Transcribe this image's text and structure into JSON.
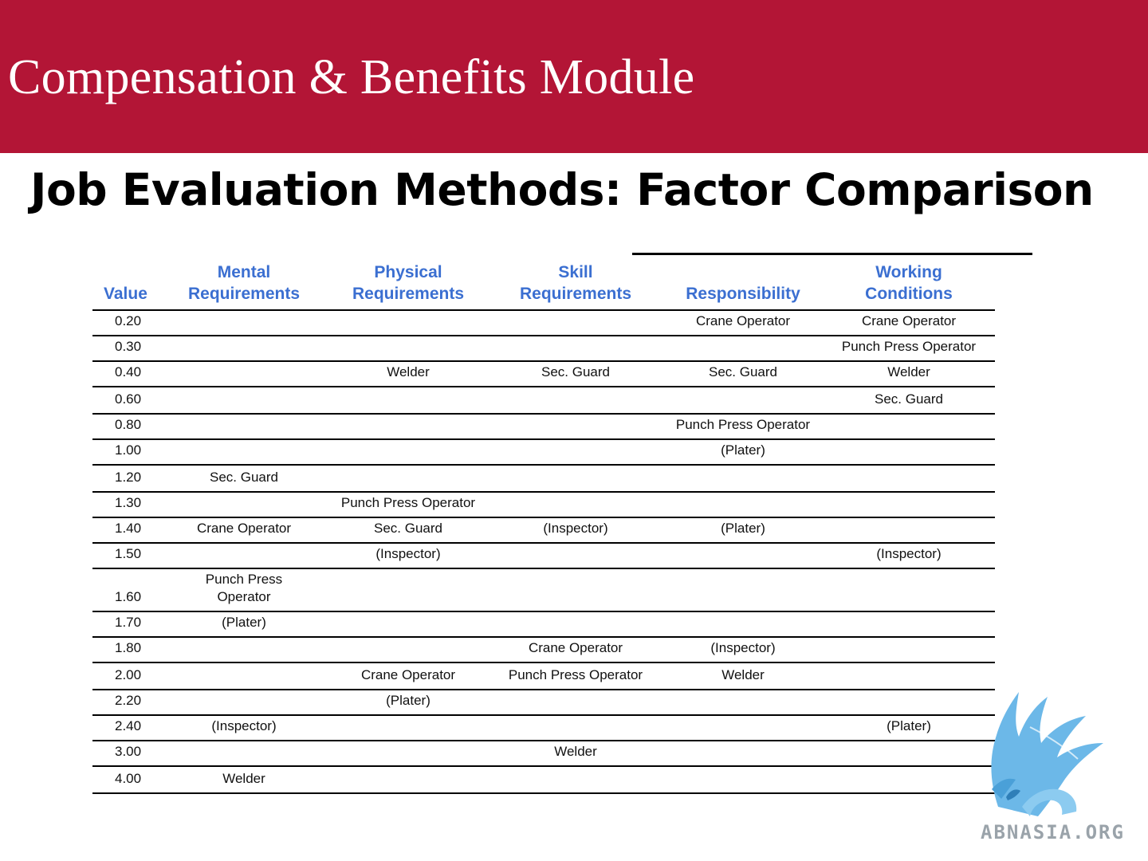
{
  "banner": {
    "title": "Compensation & Benefits Module"
  },
  "slide": {
    "title": "Job Evaluation Methods: Factor Comparison"
  },
  "table": {
    "headers": [
      [
        "Value"
      ],
      [
        "Mental",
        "Requirements"
      ],
      [
        "Physical",
        "Requirements"
      ],
      [
        "Skill",
        "Requirements"
      ],
      [
        "Responsibility"
      ],
      [
        "Working",
        "Conditions"
      ]
    ],
    "rows": [
      [
        "0.20",
        "",
        "",
        "",
        "Crane Operator",
        "Crane Operator"
      ],
      [
        "0.30",
        "",
        "",
        "",
        "",
        "Punch Press Operator"
      ],
      [
        "0.40",
        "",
        "Welder",
        "Sec. Guard",
        "Sec. Guard",
        "Welder"
      ],
      [
        "0.60",
        "",
        "",
        "",
        "",
        "Sec. Guard"
      ],
      [
        "0.80",
        "",
        "",
        "",
        "Punch Press Operator",
        ""
      ],
      [
        "1.00",
        "",
        "",
        "",
        "(Plater)",
        ""
      ],
      [
        "1.20",
        "Sec. Guard",
        "",
        "",
        "",
        ""
      ],
      [
        "1.30",
        "",
        "Punch Press Operator",
        "",
        "",
        ""
      ],
      [
        "1.40",
        "Crane Operator",
        "Sec. Guard",
        "(Inspector)",
        "(Plater)",
        ""
      ],
      [
        "1.50",
        "",
        "(Inspector)",
        "",
        "",
        "(Inspector)"
      ],
      [
        "1.60",
        "Punch Press Operator",
        "",
        "",
        "",
        ""
      ],
      [
        "1.70",
        "(Plater)",
        "",
        "",
        "",
        ""
      ],
      [
        "1.80",
        "",
        "",
        "Crane Operator",
        "(Inspector)",
        ""
      ],
      [
        "2.00",
        "",
        "Crane Operator",
        "Punch Press Operator",
        "Welder",
        ""
      ],
      [
        "2.20",
        "",
        "(Plater)",
        "",
        "",
        ""
      ],
      [
        "2.40",
        "(Inspector)",
        "",
        "",
        "",
        "(Plater)"
      ],
      [
        "3.00",
        "",
        "",
        "Welder",
        "",
        ""
      ],
      [
        "4.00",
        "Welder",
        "",
        "",
        "",
        ""
      ]
    ]
  },
  "logo": {
    "text": "ABNASIA.ORG",
    "icon": "griffin-icon",
    "color": "#5fb3e6"
  },
  "colors": {
    "banner": "#b31536",
    "header_text": "#3b6fd1"
  }
}
